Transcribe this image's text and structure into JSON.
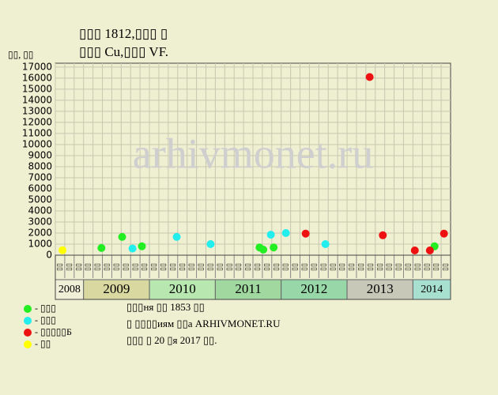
{
  "chart_data": {
    "type": "scatter",
    "title": "▯▯▯ 1812,▯▯▯ ▯",
    "subtitle": "▯▯▯ Cu,▯▯▯ VF.",
    "y_label": "▯▯, ▯▯",
    "watermark": "arhivmonet.ru",
    "xlim": [
      0,
      42
    ],
    "ylim": [
      0,
      17350
    ],
    "yticks": [
      0,
      1000,
      2000,
      3000,
      4000,
      5000,
      6000,
      7000,
      8000,
      9000,
      10000,
      11000,
      12000,
      13000,
      14000,
      15000,
      16000,
      17000
    ],
    "grid": true,
    "column_labels": [
      "▯▯",
      "▯▯",
      "▯▯",
      "▯▯",
      "▯▯",
      "▯▯",
      "▯▯",
      "▯▯",
      "▯▯",
      "▯▯",
      "▯▯",
      "▯▯",
      "▯▯",
      "▯▯",
      "▯▯",
      "▯▯",
      "▯▯",
      "▯▯",
      "▯▯",
      "▯▯",
      "▯▯",
      "▯▯",
      "▯▯",
      "▯▯",
      "▯▯",
      "▯▯",
      "▯▯",
      "▯▯",
      "▯▯",
      "▯▯",
      "▯▯",
      "▯▯",
      "▯▯",
      "▯▯",
      "▯▯",
      "▯▯",
      "▯▯",
      "▯▯",
      "▯▯",
      "▯▯",
      "▯▯",
      "▯▯"
    ],
    "year_bands": [
      {
        "label": "2008",
        "start": 0,
        "end": 3,
        "color": "#f0f0d8"
      },
      {
        "label": "2009",
        "start": 3,
        "end": 10,
        "color": "#d8d8a0"
      },
      {
        "label": "2010",
        "start": 10,
        "end": 17,
        "color": "#b8e8b0"
      },
      {
        "label": "2011",
        "start": 17,
        "end": 24,
        "color": "#a0d8a0"
      },
      {
        "label": "2012",
        "start": 24,
        "end": 31,
        "color": "#98d8a8"
      },
      {
        "label": "2013",
        "start": 31,
        "end": 38,
        "color": "#c8c8b8"
      },
      {
        "label": "2014",
        "start": 38,
        "end": 42,
        "color": "#a8e0d0"
      }
    ],
    "series": [
      {
        "name": "- ▯▯▯",
        "color": "#22ee22",
        "x": [
          4.9,
          7.1,
          9.2,
          21.7,
          22.1,
          23.2,
          40.3
        ],
        "values": [
          650,
          1650,
          800,
          700,
          500,
          700,
          800
        ]
      },
      {
        "name": "- ▯▯▯",
        "color": "#22eeee",
        "x": [
          8.2,
          12.9,
          16.5,
          22.9,
          24.5,
          28.7
        ],
        "values": [
          600,
          1650,
          1000,
          1850,
          2000,
          1000
        ]
      },
      {
        "name": "- ▯▯▯▯▯Б",
        "color": "#ee1111",
        "x": [
          26.6,
          33.4,
          34.8,
          38.2,
          39.8,
          41.3
        ],
        "values": [
          1950,
          16100,
          1800,
          430,
          430,
          1950
        ]
      },
      {
        "name": "- ▯▯",
        "color": "#ffff00",
        "x": [
          0.76
        ],
        "values": [
          450
        ]
      }
    ],
    "notes": [
      "▯▯▯ня ▯▯ 1853 ▯▯",
      "▯ ▯▯▯▯иям ▯▯а ARHIVMONET.RU",
      "▯▯▯ ▯ 20 ▯я 2017 ▯▯."
    ]
  }
}
